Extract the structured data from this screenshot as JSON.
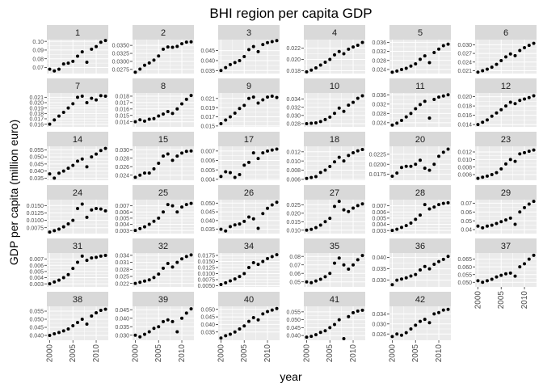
{
  "chart_data": {
    "type": "scatter",
    "title": "BHI region per capita GDP",
    "xlabel": "year",
    "ylabel": "GDP per capita (million euro)",
    "x": [
      2000,
      2001,
      2002,
      2003,
      2004,
      2005,
      2006,
      2007,
      2008,
      2009,
      2010,
      2011,
      2012
    ],
    "x_ticks": [
      2000,
      2005,
      2010
    ],
    "facet_strip_color": "#d9d9d9",
    "panel_bg_color": "#ebebeb",
    "grid_color": "#ffffff",
    "point_color": "#000000",
    "panels": [
      {
        "id": "1",
        "yticks": [
          0.07,
          0.08,
          0.09,
          0.1
        ],
        "ylim": [
          0.063,
          0.102
        ],
        "values": [
          0.068,
          0.066,
          0.068,
          0.074,
          0.075,
          0.077,
          0.083,
          0.088,
          0.076,
          0.091,
          0.094,
          0.099,
          0.101
        ]
      },
      {
        "id": "2",
        "yticks": [
          0.0275,
          0.03,
          0.0325,
          0.035
        ],
        "ylim": [
          0.0262,
          0.0368
        ],
        "values": [
          0.0266,
          0.0276,
          0.0288,
          0.0295,
          0.0304,
          0.0317,
          0.0338,
          0.0345,
          0.0344,
          0.0347,
          0.0355,
          0.036,
          0.0361
        ]
      },
      {
        "id": "3",
        "yticks": [
          0.035,
          0.04,
          0.045
        ],
        "ylim": [
          0.0335,
          0.0505
        ],
        "values": [
          0.035,
          0.0365,
          0.038,
          0.039,
          0.04,
          0.042,
          0.0455,
          0.047,
          0.0445,
          0.048,
          0.049,
          0.0495,
          0.05
        ]
      },
      {
        "id": "4",
        "yticks": [
          0.018,
          0.02,
          0.022
        ],
        "ylim": [
          0.0175,
          0.0235
        ],
        "values": [
          0.0178,
          0.0181,
          0.0185,
          0.019,
          0.0195,
          0.02,
          0.0208,
          0.0214,
          0.021,
          0.0218,
          0.0222,
          0.0225,
          0.023
        ]
      },
      {
        "id": "5",
        "yticks": [
          0.024,
          0.028,
          0.032,
          0.036
        ],
        "ylim": [
          0.0222,
          0.0372
        ],
        "values": [
          0.0228,
          0.0233,
          0.024,
          0.0245,
          0.0255,
          0.0265,
          0.0285,
          0.03,
          0.027,
          0.0315,
          0.033,
          0.0345,
          0.0352
        ]
      },
      {
        "id": "6",
        "yticks": [
          0.021,
          0.024,
          0.027,
          0.03
        ],
        "ylim": [
          0.02,
          0.0318
        ],
        "values": [
          0.0205,
          0.021,
          0.0215,
          0.0222,
          0.0232,
          0.0245,
          0.0258,
          0.0268,
          0.0262,
          0.028,
          0.029,
          0.0298,
          0.0305
        ]
      },
      {
        "id": "7",
        "yticks": [
          0.016,
          0.017,
          0.018,
          0.019,
          0.02,
          0.021
        ],
        "ylim": [
          0.0155,
          0.0218
        ],
        "values": [
          0.016,
          0.0168,
          0.0175,
          0.0182,
          0.019,
          0.0198,
          0.021,
          0.0212,
          0.02,
          0.0208,
          0.0205,
          0.0213,
          0.0212
        ]
      },
      {
        "id": "8",
        "yticks": [
          0.014,
          0.015,
          0.016,
          0.017,
          0.018
        ],
        "ylim": [
          0.0132,
          0.0185
        ],
        "values": [
          0.014,
          0.0143,
          0.0141,
          0.0144,
          0.0145,
          0.0149,
          0.0152,
          0.0156,
          0.0153,
          0.016,
          0.0168,
          0.0175,
          0.0181
        ]
      },
      {
        "id": "9",
        "yticks": [
          0.015,
          0.017,
          0.019,
          0.021
        ],
        "ylim": [
          0.0148,
          0.0222
        ],
        "values": [
          0.0155,
          0.0163,
          0.017,
          0.0178,
          0.0188,
          0.0195,
          0.021,
          0.0213,
          0.02,
          0.0207,
          0.0213,
          0.0215,
          0.0212
        ]
      },
      {
        "id": "10",
        "yticks": [
          0.028,
          0.03,
          0.032,
          0.034
        ],
        "ylim": [
          0.0272,
          0.0355
        ],
        "values": [
          0.028,
          0.0281,
          0.0282,
          0.0285,
          0.029,
          0.0296,
          0.0305,
          0.0318,
          0.031,
          0.0325,
          0.0332,
          0.0342,
          0.0348
        ]
      },
      {
        "id": "11",
        "yticks": [
          0.024,
          0.028,
          0.032,
          0.036
        ],
        "ylim": [
          0.0222,
          0.0368
        ],
        "values": [
          0.023,
          0.0238,
          0.025,
          0.0265,
          0.028,
          0.03,
          0.0318,
          0.0332,
          0.026,
          0.034,
          0.035,
          0.0355,
          0.036
        ]
      },
      {
        "id": "12",
        "yticks": [
          0.014,
          0.016,
          0.018,
          0.02
        ],
        "ylim": [
          0.0135,
          0.0208
        ],
        "values": [
          0.014,
          0.0145,
          0.015,
          0.0158,
          0.0165,
          0.0172,
          0.018,
          0.0188,
          0.0185,
          0.0192,
          0.0195,
          0.0198,
          0.0202
        ]
      },
      {
        "id": "14",
        "yticks": [
          0.035,
          0.04,
          0.045,
          0.05,
          0.055
        ],
        "ylim": [
          0.0335,
          0.0575
        ],
        "values": [
          0.038,
          0.035,
          0.0385,
          0.04,
          0.042,
          0.044,
          0.047,
          0.0485,
          0.043,
          0.05,
          0.052,
          0.0545,
          0.056
        ]
      },
      {
        "id": "15",
        "yticks": [
          0.024,
          0.026,
          0.028,
          0.03
        ],
        "ylim": [
          0.0228,
          0.0308
        ],
        "values": [
          0.0235,
          0.024,
          0.0245,
          0.0245,
          0.0255,
          0.0268,
          0.0285,
          0.029,
          0.0275,
          0.0285,
          0.0292,
          0.0296,
          0.0297
        ]
      },
      {
        "id": "17",
        "yticks": [
          0.004,
          0.005,
          0.006,
          0.007
        ],
        "ylim": [
          0.0039,
          0.0075
        ],
        "values": [
          0.0043,
          0.0048,
          0.0047,
          0.0042,
          0.0045,
          0.0055,
          0.0058,
          0.0068,
          0.0062,
          0.0068,
          0.007,
          0.0071,
          0.0072
        ]
      },
      {
        "id": "18",
        "yticks": [
          0.006,
          0.008,
          0.01,
          0.012
        ],
        "ylim": [
          0.0058,
          0.0132
        ],
        "values": [
          0.0062,
          0.0064,
          0.0066,
          0.0075,
          0.008,
          0.0088,
          0.0098,
          0.0108,
          0.01,
          0.0112,
          0.0118,
          0.0122,
          0.0125
        ]
      },
      {
        "id": "20",
        "yticks": [
          0.0175,
          0.02,
          0.0225
        ],
        "ylim": [
          0.016,
          0.0245
        ],
        "values": [
          0.017,
          0.0178,
          0.0192,
          0.0195,
          0.0195,
          0.02,
          0.021,
          0.019,
          0.0185,
          0.02,
          0.022,
          0.023,
          0.0238
        ]
      },
      {
        "id": "23",
        "yticks": [
          0.006,
          0.008,
          0.01,
          0.012
        ],
        "ylim": [
          0.0045,
          0.0135
        ],
        "values": [
          0.005,
          0.0053,
          0.0056,
          0.006,
          0.0065,
          0.0075,
          0.0088,
          0.01,
          0.0095,
          0.0115,
          0.0118,
          0.0122,
          0.0125
        ]
      },
      {
        "id": "24",
        "yticks": [
          0.0075,
          0.01,
          0.0125,
          0.015
        ],
        "ylim": [
          0.0055,
          0.017
        ],
        "values": [
          0.006,
          0.0065,
          0.007,
          0.0078,
          0.0088,
          0.01,
          0.014,
          0.0155,
          0.011,
          0.0135,
          0.014,
          0.0138,
          0.0132
        ]
      },
      {
        "id": "25",
        "yticks": [
          0.003,
          0.004,
          0.005,
          0.006,
          0.007
        ],
        "ylim": [
          0.0025,
          0.008
        ],
        "values": [
          0.003,
          0.0033,
          0.0036,
          0.004,
          0.0045,
          0.005,
          0.006,
          0.0072,
          0.007,
          0.006,
          0.0068,
          0.0072,
          0.0074
        ]
      },
      {
        "id": "26",
        "yticks": [
          0.035,
          0.04,
          0.045,
          0.05
        ],
        "ylim": [
          0.0325,
          0.052
        ],
        "values": [
          0.035,
          0.034,
          0.0365,
          0.0375,
          0.038,
          0.0395,
          0.042,
          0.041,
          0.0355,
          0.044,
          0.047,
          0.049,
          0.0505
        ]
      },
      {
        "id": "27",
        "yticks": [
          0.01,
          0.015,
          0.02,
          0.025
        ],
        "ylim": [
          0.008,
          0.028
        ],
        "values": [
          0.01,
          0.0105,
          0.0115,
          0.013,
          0.015,
          0.017,
          0.024,
          0.027,
          0.022,
          0.021,
          0.023,
          0.0245,
          0.0255
        ]
      },
      {
        "id": "28",
        "yticks": [
          0.003,
          0.004,
          0.005,
          0.006,
          0.007
        ],
        "ylim": [
          0.0025,
          0.008
        ],
        "values": [
          0.003,
          0.0032,
          0.0035,
          0.0038,
          0.0042,
          0.0048,
          0.0055,
          0.0072,
          0.0065,
          0.0068,
          0.0072,
          0.0074,
          0.0075
        ]
      },
      {
        "id": "29",
        "yticks": [
          0.04,
          0.05,
          0.06,
          0.07
        ],
        "ylim": [
          0.0355,
          0.074
        ],
        "values": [
          0.044,
          0.042,
          0.044,
          0.045,
          0.047,
          0.049,
          0.051,
          0.053,
          0.046,
          0.06,
          0.065,
          0.069,
          0.072
        ]
      },
      {
        "id": "31",
        "yticks": [
          0.003,
          0.004,
          0.005,
          0.006,
          0.007
        ],
        "ylim": [
          0.0025,
          0.008
        ],
        "values": [
          0.003,
          0.0033,
          0.0036,
          0.004,
          0.0045,
          0.0055,
          0.0065,
          0.0075,
          0.0068,
          0.0072,
          0.0073,
          0.0075,
          0.0076
        ]
      },
      {
        "id": "32",
        "yticks": [
          0.022,
          0.025,
          0.028,
          0.031,
          0.034
        ],
        "ylim": [
          0.0205,
          0.035
        ],
        "values": [
          0.022,
          0.0225,
          0.023,
          0.0235,
          0.0245,
          0.026,
          0.0285,
          0.0305,
          0.029,
          0.031,
          0.0325,
          0.0335,
          0.0342
        ]
      },
      {
        "id": "34",
        "yticks": [
          0.005,
          0.0075,
          0.01,
          0.0125,
          0.015,
          0.0175
        ],
        "ylim": [
          0.0045,
          0.0185
        ],
        "values": [
          0.0055,
          0.0062,
          0.007,
          0.0078,
          0.0088,
          0.01,
          0.0125,
          0.0145,
          0.0138,
          0.015,
          0.0162,
          0.017,
          0.0178
        ]
      },
      {
        "id": "35",
        "yticks": [
          0.05,
          0.06,
          0.07,
          0.08
        ],
        "ylim": [
          0.044,
          0.084
        ],
        "values": [
          0.05,
          0.049,
          0.051,
          0.053,
          0.056,
          0.06,
          0.072,
          0.078,
          0.07,
          0.065,
          0.07,
          0.076,
          0.081
        ]
      },
      {
        "id": "36",
        "yticks": [
          0.03,
          0.035,
          0.04
        ],
        "ylim": [
          0.027,
          0.042
        ],
        "values": [
          0.028,
          0.03,
          0.0305,
          0.031,
          0.0318,
          0.0325,
          0.0345,
          0.036,
          0.035,
          0.037,
          0.0382,
          0.0392,
          0.0405
        ]
      },
      {
        "id": "37",
        "yticks": [
          0.05,
          0.055,
          0.06,
          0.065
        ],
        "ylim": [
          0.047,
          0.069
        ],
        "values": [
          0.051,
          0.05,
          0.051,
          0.052,
          0.0535,
          0.0545,
          0.0555,
          0.056,
          0.054,
          0.06,
          0.062,
          0.065,
          0.0675
        ]
      },
      {
        "id": "38",
        "yticks": [
          0.04,
          0.045,
          0.05,
          0.055
        ],
        "ylim": [
          0.037,
          0.058
        ],
        "values": [
          0.04,
          0.041,
          0.0418,
          0.0428,
          0.044,
          0.046,
          0.048,
          0.05,
          0.047,
          0.052,
          0.054,
          0.0555,
          0.0562
        ]
      },
      {
        "id": "39",
        "yticks": [
          0.03,
          0.035,
          0.04,
          0.045
        ],
        "ylim": [
          0.027,
          0.047
        ],
        "values": [
          0.03,
          0.029,
          0.0305,
          0.032,
          0.034,
          0.035,
          0.038,
          0.039,
          0.038,
          0.032,
          0.04,
          0.043,
          0.0455
        ]
      },
      {
        "id": "40",
        "yticks": [
          0.035,
          0.04,
          0.045,
          0.05
        ],
        "ylim": [
          0.0295,
          0.052
        ],
        "values": [
          0.031,
          0.0325,
          0.0335,
          0.035,
          0.037,
          0.039,
          0.042,
          0.0445,
          0.043,
          0.047,
          0.0485,
          0.0495,
          0.0505
        ]
      },
      {
        "id": "41",
        "yticks": [
          0.04,
          0.045,
          0.05,
          0.055
        ],
        "ylim": [
          0.037,
          0.0585
        ],
        "values": [
          0.039,
          0.0395,
          0.0405,
          0.042,
          0.043,
          0.045,
          0.047,
          0.05,
          0.038,
          0.052,
          0.0545,
          0.0555,
          0.056
        ]
      },
      {
        "id": "42",
        "yticks": [
          0.026,
          0.03,
          0.034
        ],
        "ylim": [
          0.0235,
          0.037
        ],
        "values": [
          0.025,
          0.026,
          0.0255,
          0.0265,
          0.028,
          0.0295,
          0.031,
          0.0318,
          0.0305,
          0.034,
          0.0345,
          0.0355,
          0.0358
        ]
      }
    ]
  }
}
